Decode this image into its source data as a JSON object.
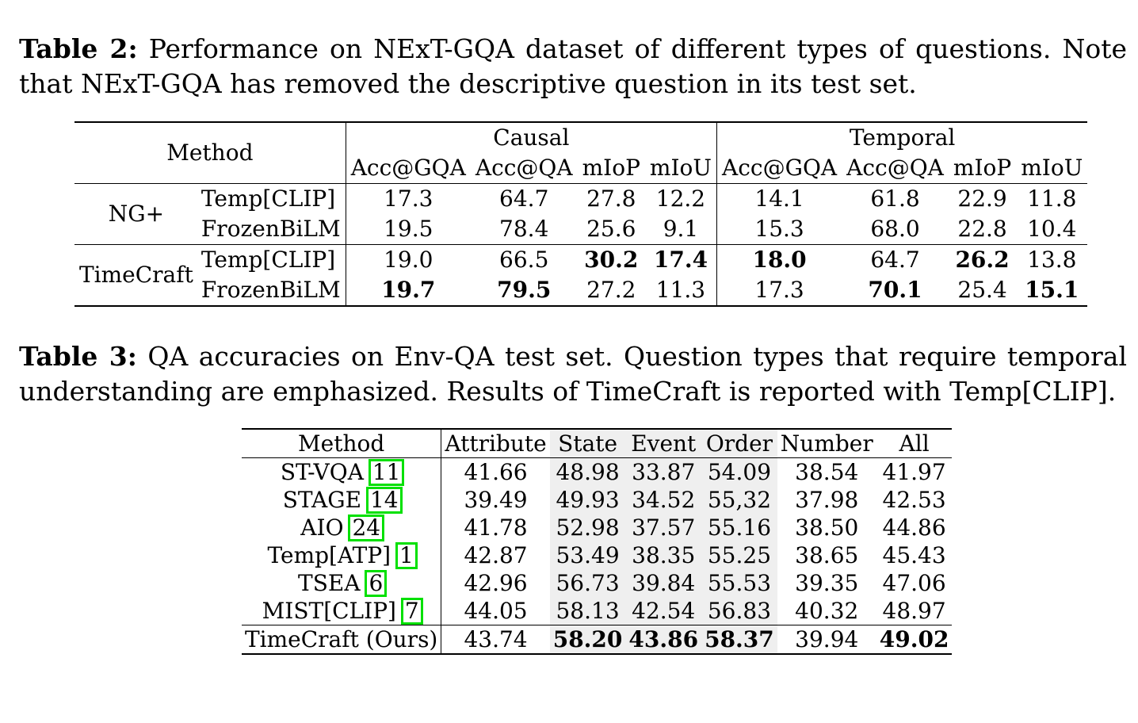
{
  "table2": {
    "label": "Table 2:",
    "caption": " Performance on NExT-GQA dataset of different types of questions. Note that NExT-GQA has removed the descriptive question in its test set.",
    "method_header": "Method",
    "group_headers": [
      "Causal",
      "Temporal"
    ],
    "metric_headers": [
      "Acc@GQA",
      "Acc@QA",
      "mIoP",
      "mIoU",
      "Acc@GQA",
      "Acc@QA",
      "mIoP",
      "mIoU"
    ],
    "groups": [
      {
        "name": "NG+",
        "rows": [
          {
            "method": "Temp[CLIP]",
            "values": [
              "17.3",
              "64.7",
              "27.8",
              "12.2",
              "14.1",
              "61.8",
              "22.9",
              "11.8"
            ]
          },
          {
            "method": "FrozenBiLM",
            "values": [
              "19.5",
              "78.4",
              "25.6",
              "9.1",
              "15.3",
              "68.0",
              "22.8",
              "10.4"
            ]
          }
        ]
      },
      {
        "name": "TimeCraft",
        "rows": [
          {
            "method": "Temp[CLIP]",
            "values": [
              "19.0",
              "66.5",
              "30.2",
              "17.4",
              "18.0",
              "64.7",
              "26.2",
              "13.8"
            ]
          },
          {
            "method": "FrozenBiLM",
            "values": [
              "19.7",
              "79.5",
              "27.2",
              "11.3",
              "17.3",
              "70.1",
              "25.4",
              "15.1"
            ]
          }
        ]
      }
    ]
  },
  "table3": {
    "label": "Table 3:",
    "caption": " QA accuracies on Env-QA test set. Question types that require temporal understanding are emphasized. Results of TimeCraft is reported with Temp[CLIP].",
    "headers": [
      "Method",
      "Attribute",
      "State",
      "Event",
      "Order",
      "Number",
      "All"
    ],
    "rows": [
      {
        "method": "ST-VQA",
        "cite": "11",
        "values": [
          "41.66",
          "48.98",
          "33.87",
          "54.09",
          "38.54",
          "41.97"
        ]
      },
      {
        "method": "STAGE",
        "cite": "14",
        "values": [
          "39.49",
          "49.93",
          "34.52",
          "55,32",
          "37.98",
          "42.53"
        ]
      },
      {
        "method": "AIO",
        "cite": "24",
        "values": [
          "41.78",
          "52.98",
          "37.57",
          "55.16",
          "38.50",
          "44.86"
        ]
      },
      {
        "method": "Temp[ATP]",
        "cite": "1",
        "values": [
          "42.87",
          "53.49",
          "38.35",
          "55.25",
          "38.65",
          "45.43"
        ]
      },
      {
        "method": "TSEA",
        "cite": "6",
        "values": [
          "42.96",
          "56.73",
          "39.84",
          "55.53",
          "39.35",
          "47.06"
        ]
      },
      {
        "method": "MIST[CLIP]",
        "cite": "7",
        "values": [
          "44.05",
          "58.13",
          "42.54",
          "56.83",
          "40.32",
          "48.97"
        ]
      }
    ],
    "ours": {
      "method": "TimeCraft (Ours)",
      "values": [
        "43.74",
        "58.20",
        "43.86",
        "58.37",
        "39.94",
        "49.02"
      ]
    }
  }
}
